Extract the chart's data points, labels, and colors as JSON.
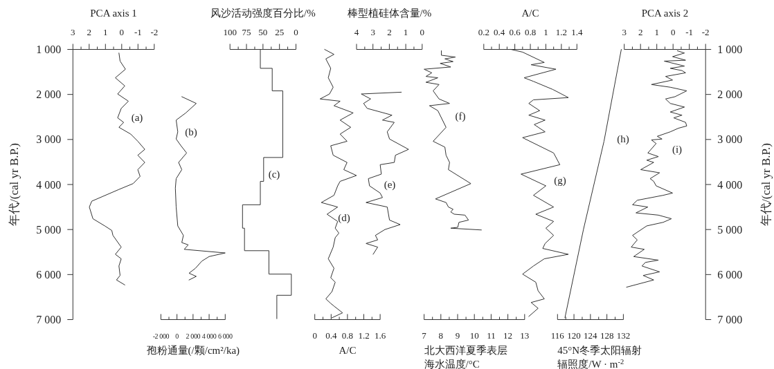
{
  "chart_data": [
    {
      "type": "line",
      "xlabel": "PCA axis 1",
      "ylabel": "年代/(cal yr B.P.)",
      "xlim": [
        3,
        -2
      ],
      "xticks": [
        3,
        {
          "value": 2.5,
          "label": null
        },
        2,
        {
          "value": 1.5,
          "label": null
        },
        1,
        {
          "value": 0.5,
          "label": null
        },
        0,
        {
          "value": -0.5,
          "label": null
        },
        -1,
        {
          "value": -1.5,
          "label": null
        },
        -2
      ],
      "ylim": [
        7000,
        1000
      ],
      "yticks": [
        {
          "value": 1000,
          "label": "1 000"
        },
        {
          "value": 2000,
          "label": "2 000"
        },
        {
          "value": 3000,
          "label": "3 000"
        },
        {
          "value": 4000,
          "label": "4 000"
        },
        {
          "value": 5000,
          "label": "5 000"
        },
        {
          "value": 6000,
          "label": "6 000"
        },
        {
          "value": 7000,
          "label": "7 000"
        }
      ],
      "series": [
        {
          "color": "#333333",
          "x": [
            0.17,
            0.1,
            -0.23,
            0.39,
            -0.19,
            0.25,
            -0.41,
            0.03,
            0.25,
            -0.12,
            0.17,
            -0.55,
            -0.99,
            -1.42,
            -0.99,
            -1.42,
            -0.99,
            -1.13,
            -0.7,
            0.17,
            1.84,
            1.99,
            1.77,
            1.04,
            0.61,
            0.54,
            0.03,
            0.39,
            0.03,
            0.17,
            0.1,
            0.32,
            -0.19
          ],
          "values": [
            1080,
            1260,
            1440,
            1630,
            1810,
            1990,
            2150,
            2310,
            2520,
            2620,
            2730,
            2880,
            3040,
            3220,
            3350,
            3510,
            3670,
            3820,
            3980,
            4110,
            4370,
            4500,
            4760,
            4920,
            5020,
            5130,
            5390,
            5550,
            5650,
            5810,
            6020,
            6120,
            6230
          ]
        }
      ],
      "annotations": [
        "(a)"
      ]
    },
    {
      "type": "line",
      "xlabel": "孢粉通量(/颗/cm²/ka)",
      "xlim": [
        -2000,
        6000
      ],
      "xticks": [
        {
          "value": -2000,
          "label": "-2 000"
        },
        {
          "value": -1000,
          "label": null
        },
        0,
        {
          "value": 1000,
          "label": null
        },
        {
          "value": 2000,
          "label": "2 000"
        },
        {
          "value": 3000,
          "label": null
        },
        {
          "value": 4000,
          "label": "4 000"
        },
        {
          "value": 5000,
          "label": null
        },
        {
          "value": 6000,
          "label": "6 000"
        }
      ],
      "ylim": [
        7000,
        1000
      ],
      "tick_labels": "x",
      "series": [
        {
          "color": "#333333",
          "x": [
            600,
            2400,
            1100,
            -100,
            100,
            -100,
            500,
            1200,
            200,
            600,
            -100,
            -200,
            -100,
            100,
            800,
            600,
            1400,
            900,
            6000,
            4000,
            3100,
            2300,
            1500,
            2400,
            1500
          ],
          "values": [
            2050,
            2200,
            2410,
            2570,
            2830,
            2990,
            3140,
            3300,
            3510,
            3670,
            3870,
            4080,
            4500,
            4920,
            5130,
            5290,
            5340,
            5440,
            5520,
            5600,
            5700,
            5860,
            5970,
            6040,
            6120
          ]
        }
      ],
      "annotations": [
        "(b)"
      ]
    },
    {
      "type": "line",
      "xlabel": "风沙活动强度百分比/%",
      "xlim": [
        100,
        0
      ],
      "xticks": [
        100,
        {
          "value": 87.5,
          "label": null
        },
        75,
        {
          "value": 62.5,
          "label": null
        },
        50,
        {
          "value": 37.5,
          "label": null
        },
        25,
        {
          "value": 12.5,
          "label": null
        },
        0
      ],
      "ylim": [
        7000,
        1000
      ],
      "tick_labels": "x",
      "series": [
        {
          "color": "#333333",
          "x": [
            54,
            54,
            36,
            36,
            20,
            20,
            49,
            49,
            54,
            54,
            81,
            81,
            78,
            78,
            41,
            41,
            7,
            7,
            29,
            29
          ],
          "values": [
            1000,
            1420,
            1420,
            1920,
            1920,
            3400,
            3400,
            3930,
            3930,
            4450,
            4450,
            4970,
            4970,
            5470,
            5470,
            5990,
            5990,
            6460,
            6460,
            6980
          ]
        }
      ],
      "annotations": [
        "(c)"
      ]
    },
    {
      "type": "line",
      "xlabel": "A/C",
      "xlim": [
        0,
        1.6
      ],
      "xticks": [
        0,
        {
          "value": 0.2,
          "label": null
        },
        0.4,
        {
          "value": 0.6,
          "label": null
        },
        0.8,
        {
          "value": 1.0,
          "label": null
        },
        1.2,
        {
          "value": 1.4,
          "label": null
        },
        1.6
      ],
      "ylim": [
        7000,
        1000
      ],
      "tick_labels": "x",
      "series": [
        {
          "color": "#333333",
          "x": [
            0.24,
            0.47,
            0.27,
            0.39,
            0.33,
            0.45,
            0.36,
            0.13,
            0.62,
            0.47,
            0.94,
            0.62,
            0.88,
            0.62,
            0.79,
            0.39,
            0.45,
            0.79,
            0.71,
            1.02,
            0.62,
            0.56,
            0.47,
            0.16,
            0.56,
            0.3,
            0.56,
            0.5,
            0.59,
            0.5,
            0.45,
            0.33,
            0.47,
            0.39,
            0.5,
            0.42,
            0.27,
            0.39,
            0.47,
            0.68,
            0.42
          ],
          "values": [
            1000,
            1110,
            1210,
            1420,
            1630,
            1840,
            1990,
            2100,
            2150,
            2250,
            2410,
            2570,
            2730,
            2880,
            3040,
            3140,
            3350,
            3510,
            3670,
            3800,
            3930,
            4030,
            4240,
            4400,
            4500,
            4660,
            4820,
            4970,
            5080,
            5180,
            5390,
            5650,
            5860,
            6070,
            6170,
            6380,
            6540,
            6640,
            6700,
            6850,
            6960
          ]
        }
      ],
      "annotations": [
        "(d)"
      ]
    },
    {
      "type": "line",
      "xlabel": "棒型植硅体含量/%",
      "xlim": [
        4,
        0
      ],
      "xticks": [
        4,
        {
          "value": 3.5,
          "label": null
        },
        3,
        {
          "value": 2.5,
          "label": null
        },
        2,
        {
          "value": 1.5,
          "label": null
        },
        1,
        {
          "value": 0.5,
          "label": null
        },
        0
      ],
      "ylim": [
        7000,
        1000
      ],
      "tick_labels": "x",
      "series": [
        {
          "color": "#333333",
          "x": [
            1.27,
            3.71,
            3.14,
            3.57,
            3.35,
            1.84,
            2.42,
            1.7,
            2.13,
            1.99,
            0.83,
            1.63,
            1.7,
            2.56,
            2.49,
            3.28,
            3.21,
            2.56,
            2.42,
            3.42,
            2.13,
            1.99,
            1.34,
            2.27,
            2.85,
            2.71,
            3.42,
            2.71,
            2.99
          ],
          "values": [
            1950,
            1990,
            2100,
            2200,
            2310,
            2460,
            2570,
            2620,
            2830,
            2990,
            3220,
            3350,
            3510,
            3560,
            3770,
            3870,
            4030,
            4190,
            4290,
            4400,
            4500,
            4790,
            4890,
            5000,
            5130,
            5230,
            5310,
            5390,
            5550
          ]
        }
      ],
      "annotations": [
        "(e)"
      ]
    },
    {
      "type": "line",
      "xlabel": "北大西洋夏季表层海水温度/°C",
      "xlim": [
        7,
        13
      ],
      "xticks": [
        7,
        {
          "value": 7.5,
          "label": null
        },
        8,
        {
          "value": 8.5,
          "label": null
        },
        9,
        {
          "value": 9.5,
          "label": null
        },
        10,
        {
          "value": 10.5,
          "label": null
        },
        11,
        {
          "value": 11.5,
          "label": null
        },
        12,
        {
          "value": 12.5,
          "label": null
        },
        13
      ],
      "ylim": [
        7000,
        1000
      ],
      "tick_labels": "x",
      "series": [
        {
          "color": "#333333",
          "x": [
            8.03,
            8.03,
            8.87,
            8.24,
            8.73,
            7.96,
            8.59,
            7.0,
            7.46,
            7.11,
            7.82,
            7.11,
            7.89,
            7.54,
            7.89,
            8.52,
            7.32,
            7.82,
            8.31,
            7.54,
            8.24,
            8.31,
            8.52,
            8.45,
            9.79,
            7.68,
            8.31,
            8.45,
            8.73,
            8.59,
            8.8,
            9.44,
            9.65,
            9.08,
            9.01,
            8.59,
            10.42
          ],
          "values": [
            1030,
            1130,
            1170,
            1210,
            1270,
            1310,
            1390,
            1440,
            1520,
            1600,
            1630,
            1730,
            1780,
            1920,
            2100,
            2200,
            2250,
            2360,
            2730,
            3040,
            3170,
            3350,
            3510,
            3670,
            3980,
            4320,
            4400,
            4500,
            4550,
            4610,
            4660,
            4680,
            4790,
            4840,
            4950,
            4970,
            5010
          ]
        }
      ],
      "annotations": [
        "(f)"
      ]
    },
    {
      "type": "line",
      "xlabel": "A/C",
      "xlim": [
        0.2,
        1.4
      ],
      "xticks": [
        0.2,
        {
          "value": 0.3,
          "label": null
        },
        0.4,
        {
          "value": 0.5,
          "label": null
        },
        0.6,
        {
          "value": 0.7,
          "label": null
        },
        0.8,
        {
          "value": 0.9,
          "label": null
        },
        1,
        {
          "value": 1.1,
          "label": null
        },
        1.2,
        {
          "value": 1.3,
          "label": null
        },
        1.4
      ],
      "ylim": [
        7000,
        1000
      ],
      "tick_labels": "x",
      "series": [
        {
          "color": "#333333",
          "x": [
            0.55,
            0.7,
            0.98,
            0.81,
            1.13,
            0.72,
            0.84,
            1.09,
            1.29,
            0.84,
            0.78,
            0.92,
            0.78,
            0.99,
            0.85,
            0.99,
            0.7,
            1.1,
            1.18,
            0.68,
            1.0,
            0.84,
            1.1,
            0.87,
            1.1,
            1.0,
            1.1,
            0.99,
            0.96,
            1.29,
            0.98,
            0.84,
            0.7,
            0.87,
            0.9,
            0.98,
            0.81,
            0.9,
            0.78
          ],
          "values": [
            1000,
            1060,
            1290,
            1340,
            1440,
            1630,
            1710,
            1890,
            2070,
            2120,
            2200,
            2360,
            2460,
            2570,
            2670,
            2830,
            2960,
            3300,
            3560,
            3770,
            4030,
            4240,
            4500,
            4660,
            4820,
            4970,
            5130,
            5310,
            5420,
            5550,
            5650,
            5810,
            5990,
            6170,
            6360,
            6540,
            6620,
            6750,
            6930
          ]
        }
      ],
      "annotations": [
        "(g)"
      ]
    },
    {
      "type": "line",
      "xlabel": "45°N冬季太阳辐射辐照度/W · m$^{-2}$",
      "xlim": [
        116,
        132
      ],
      "xticks": [
        116,
        {
          "value": 118,
          "label": null
        },
        120,
        {
          "value": 122,
          "label": null
        },
        124,
        {
          "value": 126,
          "label": null
        },
        128,
        {
          "value": 130,
          "label": null
        },
        132
      ],
      "ylim": [
        7000,
        1000
      ],
      "tick_labels": "x",
      "series": [
        {
          "color": "#333333",
          "x": [
            131.5,
            127.3,
            122.3,
            117.8
          ],
          "values": [
            1000,
            3040,
            5000,
            6960
          ]
        }
      ],
      "annotations": [
        "(h)"
      ]
    },
    {
      "type": "line",
      "xlabel": "PCA axis 2",
      "ylabel": "年代/(cal yr B.P.)",
      "xlim": [
        3,
        -2
      ],
      "xticks": [
        3,
        {
          "value": 2.5,
          "label": null
        },
        2,
        {
          "value": 1.5,
          "label": null
        },
        1,
        {
          "value": 0.5,
          "label": null
        },
        0,
        {
          "value": -0.5,
          "label": null
        },
        -1,
        {
          "value": -1.5,
          "label": null
        },
        -2
      ],
      "ylim": [
        7000,
        1000
      ],
      "yticks": [
        {
          "value": 1000,
          "label": "1 000"
        },
        {
          "value": 2000,
          "label": "2 000"
        },
        {
          "value": 3000,
          "label": "3 000"
        },
        {
          "value": 4000,
          "label": "4 000"
        },
        {
          "value": 5000,
          "label": "5 000"
        },
        {
          "value": 6000,
          "label": "6 000"
        },
        {
          "value": 7000,
          "label": "7 000"
        }
      ],
      "series": [
        {
          "color": "#333333",
          "x": [
            -0.26,
            -0.7,
            0.03,
            -0.77,
            0.54,
            -0.7,
            0.17,
            -0.55,
            -0.77,
            0.46,
            0.03,
            1.33,
            0.17,
            -0.84,
            -0.12,
            0.46,
            0.17,
            -0.7,
            0.17,
            -0.55,
            -0.04,
            -0.77,
            -0.84,
            -0.33,
            0.17,
            0.97,
            0.68,
            1.33,
            1.04,
            1.55,
            0.9,
            1.62,
            1.19,
            1.99,
            0.83,
            1.41,
            1.19,
            1.04,
            0.03,
            0.61,
            2.2,
            2.49,
            1.55,
            2.28,
            0.9,
            0.1,
            0.61,
            1.62,
            2.49,
            2.2,
            2.57,
            1.77,
            2.42,
            0.9,
            1.7,
            1.91,
            0.83,
            1.84,
            1.19,
            2.86
          ],
          "values": [
            1030,
            1080,
            1160,
            1240,
            1260,
            1370,
            1420,
            1470,
            1520,
            1600,
            1680,
            1780,
            1840,
            1920,
            2050,
            2100,
            2200,
            2280,
            2390,
            2460,
            2520,
            2620,
            2700,
            2750,
            2830,
            2930,
            2990,
            3010,
            3090,
            3300,
            3380,
            3460,
            3510,
            3670,
            3740,
            3870,
            3930,
            4030,
            4190,
            4240,
            4350,
            4450,
            4500,
            4630,
            4680,
            4760,
            4840,
            4920,
            5130,
            5230,
            5390,
            5440,
            5600,
            5680,
            5730,
            5810,
            5940,
            6020,
            6120,
            6280
          ]
        }
      ],
      "annotations": [
        "(i)"
      ]
    }
  ]
}
